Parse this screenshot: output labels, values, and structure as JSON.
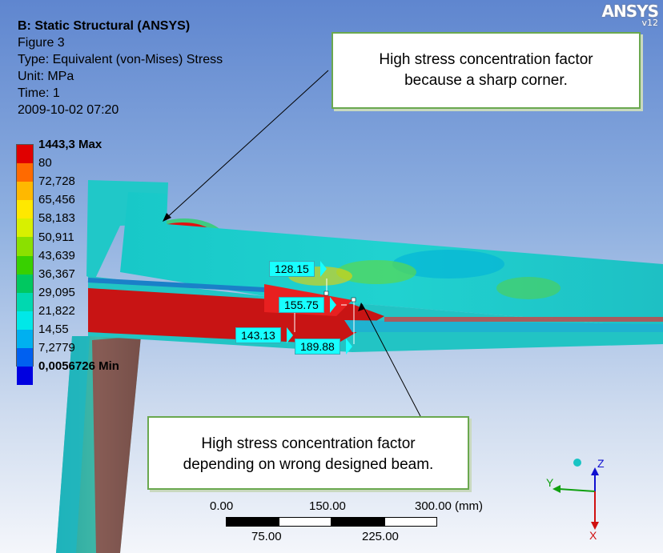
{
  "header": {
    "title": "B: Static Structural (ANSYS)",
    "figure": "Figure 3",
    "type_line": "Type: Equivalent (von-Mises) Stress",
    "unit_line": "Unit: MPa",
    "time_line": "Time: 1",
    "timestamp": "2009-10-02 07:20"
  },
  "logo": {
    "brand": "ANSYS",
    "version": "v12"
  },
  "legend": {
    "labels": [
      "1443,3 Max",
      "80",
      "72,728",
      "65,456",
      "58,183",
      "50,911",
      "43,639",
      "36,367",
      "29,095",
      "21,822",
      "14,55",
      "7,2779",
      "0,0056726 Min"
    ],
    "colors": [
      "#e00000",
      "#ff6a00",
      "#ffb800",
      "#ffe800",
      "#d8f000",
      "#8be000",
      "#38d000",
      "#00c860",
      "#00d8b0",
      "#00e8e8",
      "#00b0f0",
      "#0060f0",
      "#0000e0"
    ]
  },
  "callouts": {
    "top": {
      "line1": "High stress concentration factor",
      "line2": "because a sharp corner."
    },
    "bottom": {
      "line1": "High stress concentration factor",
      "line2": "depending on wrong designed beam."
    }
  },
  "probes": [
    "128.15",
    "155.75",
    "143.13",
    "189.88"
  ],
  "scale_bar": {
    "top_labels": [
      "0.00",
      "150.00",
      "300.00 (mm)"
    ],
    "bottom_labels": [
      "75.00",
      "225.00"
    ]
  },
  "triad": {
    "x": "X",
    "y": "Y",
    "z": "Z"
  }
}
